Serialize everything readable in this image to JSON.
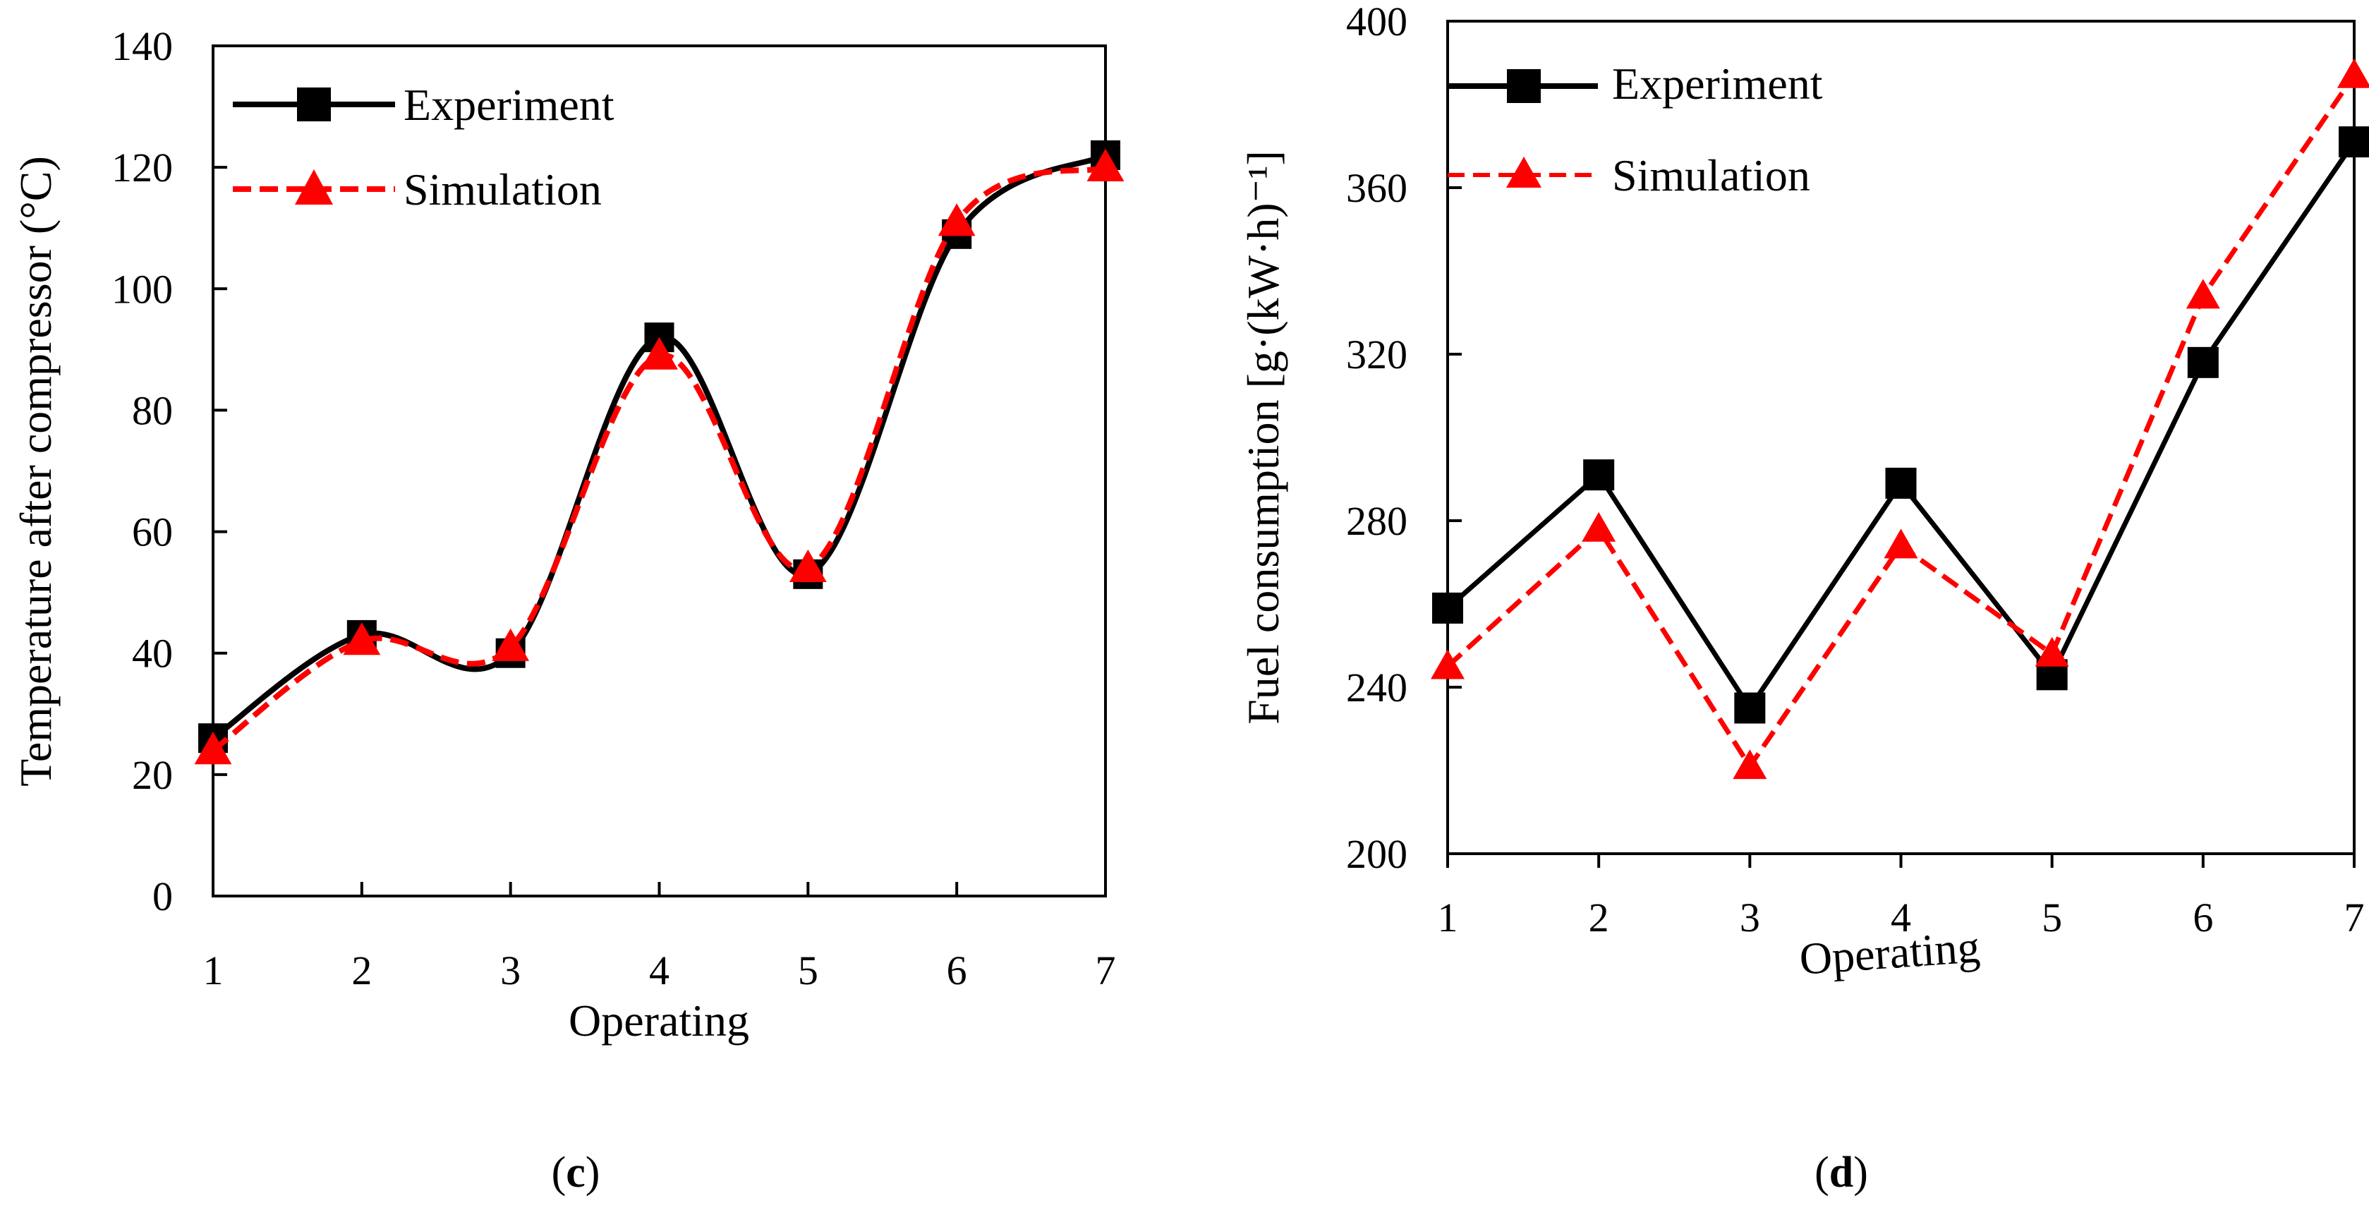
{
  "chart_data": [
    {
      "type": "line",
      "panel_label": "c",
      "title": "",
      "xlabel": "Operating",
      "ylabel": "Temperature after compressor (°C)",
      "categories": [
        1,
        2,
        3,
        4,
        5,
        6,
        7
      ],
      "xlim": [
        1,
        7
      ],
      "ylim": [
        0,
        140
      ],
      "y_ticks": [
        0,
        20,
        40,
        60,
        80,
        100,
        120,
        140
      ],
      "grid": false,
      "legend_position": "top-left",
      "series": [
        {
          "name": "Experiment",
          "values": [
            26,
            43,
            40,
            92,
            53,
            109,
            122
          ],
          "color": "#000000",
          "marker": "square",
          "dash": "solid"
        },
        {
          "name": "Simulation",
          "values": [
            24,
            42,
            41,
            89,
            54,
            111,
            120
          ],
          "color": "#ff0000",
          "marker": "triangle",
          "dash": "dashed"
        }
      ]
    },
    {
      "type": "line",
      "panel_label": "d",
      "title": "",
      "xlabel": "Operating",
      "ylabel": "Fuel consumption [g·(kW·h)⁻¹]",
      "categories": [
        1,
        2,
        3,
        4,
        5,
        6,
        7
      ],
      "xlim": [
        1,
        7
      ],
      "ylim": [
        200,
        400
      ],
      "y_ticks": [
        200,
        240,
        280,
        320,
        360,
        400
      ],
      "grid": false,
      "legend_position": "top-left",
      "series": [
        {
          "name": "Experiment",
          "values": [
            259,
            291,
            235,
            289,
            243,
            318,
            371
          ],
          "color": "#000000",
          "marker": "square",
          "dash": "solid"
        },
        {
          "name": "Simulation",
          "values": [
            245,
            278,
            221,
            274,
            248,
            334,
            387
          ],
          "color": "#ff0000",
          "marker": "triangle",
          "dash": "dashed"
        }
      ]
    }
  ]
}
